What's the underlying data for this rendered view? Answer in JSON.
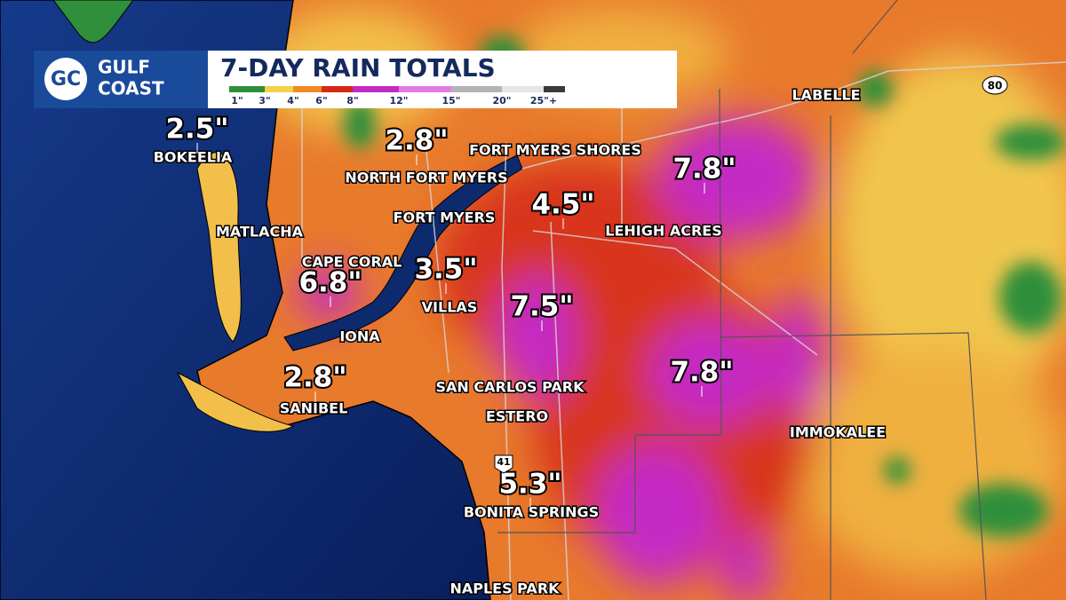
{
  "logo": {
    "mark": "GC",
    "line1": "GULF",
    "line2": "COAST"
  },
  "title": "7-DAY RAIN TOTALS",
  "legend": [
    {
      "label": "1\"",
      "color": "#2f8f3a"
    },
    {
      "label": "3\"",
      "color": "#f2d24a"
    },
    {
      "label": "4\"",
      "color": "#f08a24"
    },
    {
      "label": "6\"",
      "color": "#d42a14"
    },
    {
      "label": "8\"",
      "color": "#c42ac4"
    },
    {
      "label": "12\"",
      "color": "#e27ae6"
    },
    {
      "label": "15\"",
      "color": "#b4b4b4"
    },
    {
      "label": "20\"",
      "color": "#e6e6e6"
    },
    {
      "label": "25\"+",
      "color": "#3a3a3a"
    }
  ],
  "places": [
    "LABELLE",
    "BOKEELIA",
    "FORT MYERS SHORES",
    "NORTH FORT MYERS",
    "FORT MYERS",
    "LEHIGH ACRES",
    "MATLACHA",
    "CAPE CORAL",
    "VILLAS",
    "IONA",
    "SAN CARLOS PARK",
    "ESTERO",
    "SANIBEL",
    "IMMOKALEE",
    "BONITA SPRINGS",
    "NAPLES PARK"
  ],
  "totals": [
    "2.5\"",
    "2.8\"",
    "7.8\"",
    "4.5\"",
    "6.8\"",
    "3.5\"",
    "7.5\"",
    "7.8\"",
    "2.8\"",
    "5.3\""
  ],
  "highways": [
    "80",
    "41"
  ]
}
